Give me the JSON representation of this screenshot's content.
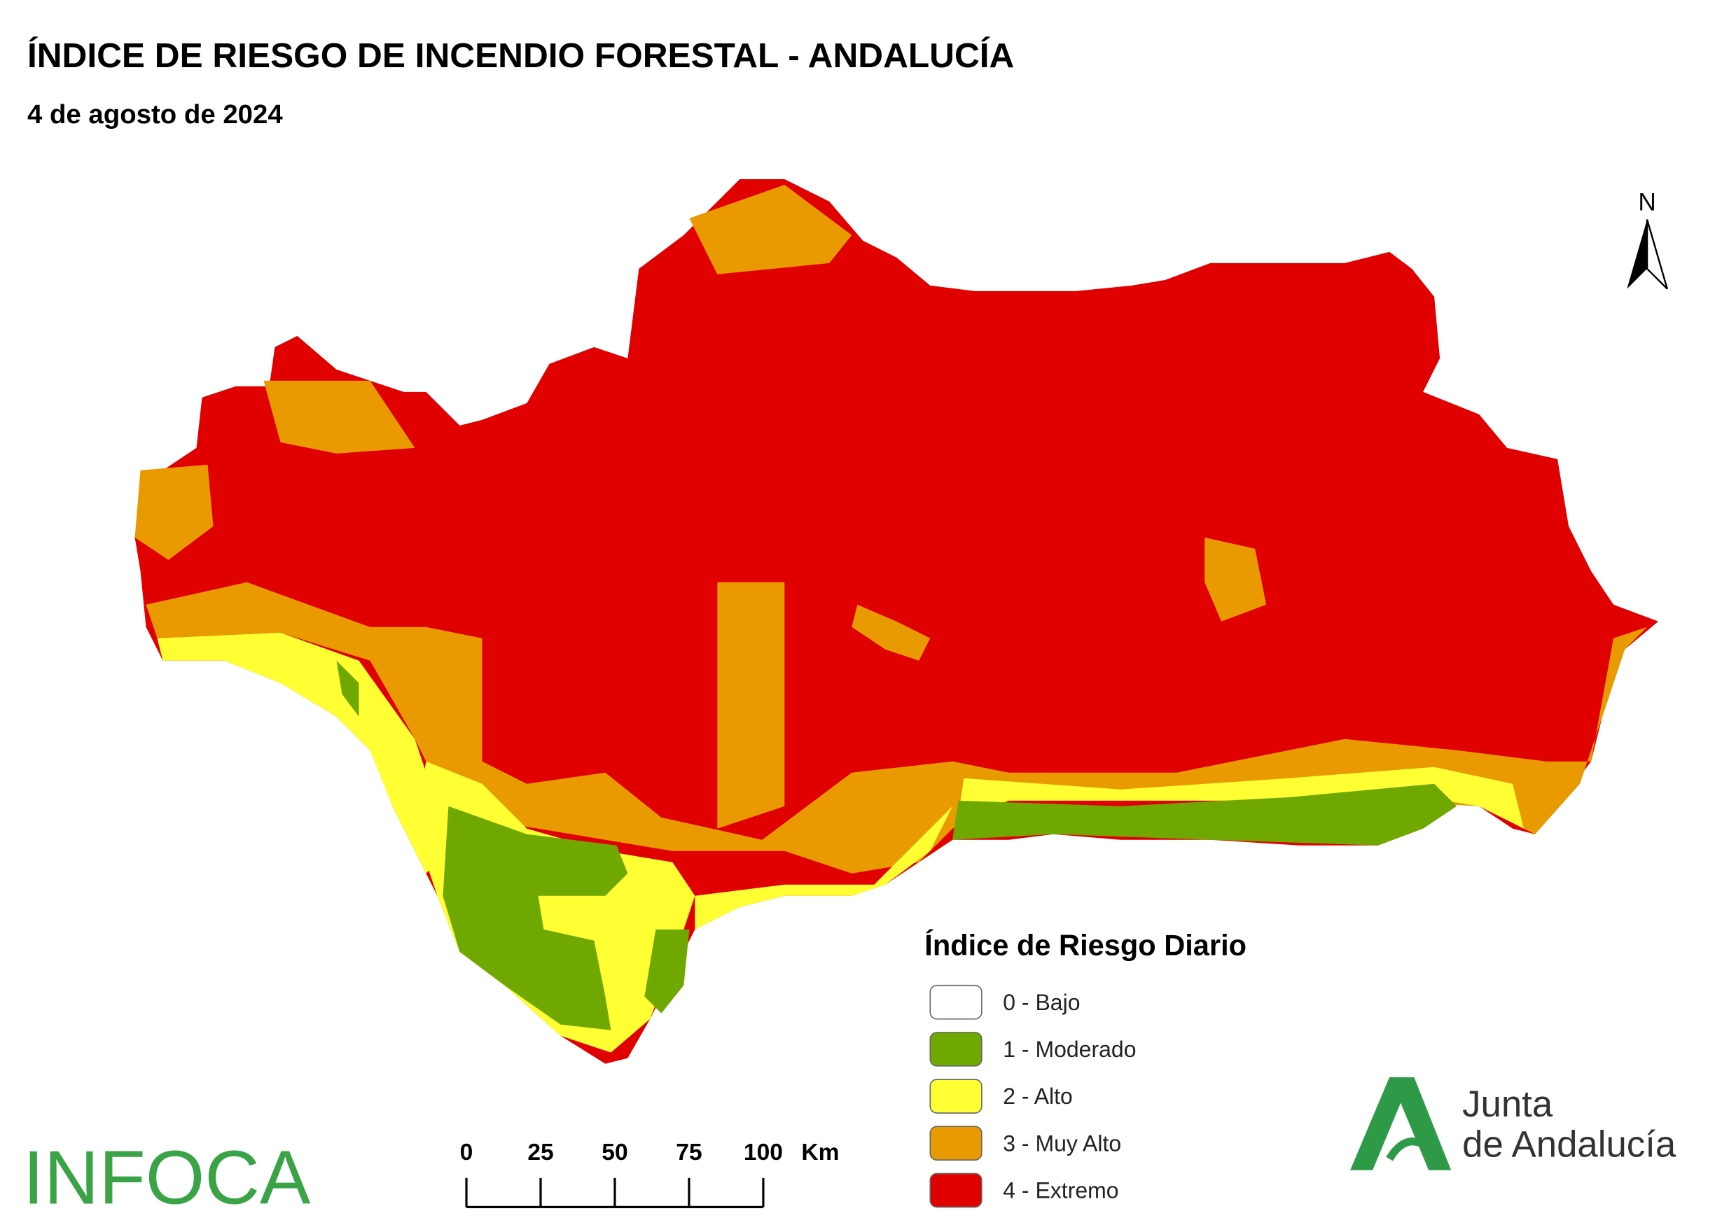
{
  "header": {
    "title": "ÍNDICE DE RIESGO DE INCENDIO FORESTAL - ANDALUCÍA",
    "subtitle": "4 de agosto de 2024"
  },
  "north": "N",
  "legend": {
    "title": "Índice de Riesgo Diario",
    "items": [
      {
        "label": "0 - Bajo",
        "color": "#ffffff"
      },
      {
        "label": "1 - Moderado",
        "color": "#6fa800"
      },
      {
        "label": "2 - Alto",
        "color": "#ffff33"
      },
      {
        "label": "3 - Muy Alto",
        "color": "#e89a00"
      },
      {
        "label": "4 - Extremo",
        "color": "#e00000"
      }
    ]
  },
  "scale_bar": {
    "ticks": [
      0,
      25,
      50,
      75,
      100
    ],
    "unit": "Km"
  },
  "logos": {
    "infoca": "INFOCA",
    "junta": [
      "Junta",
      "de Andalucía"
    ]
  }
}
